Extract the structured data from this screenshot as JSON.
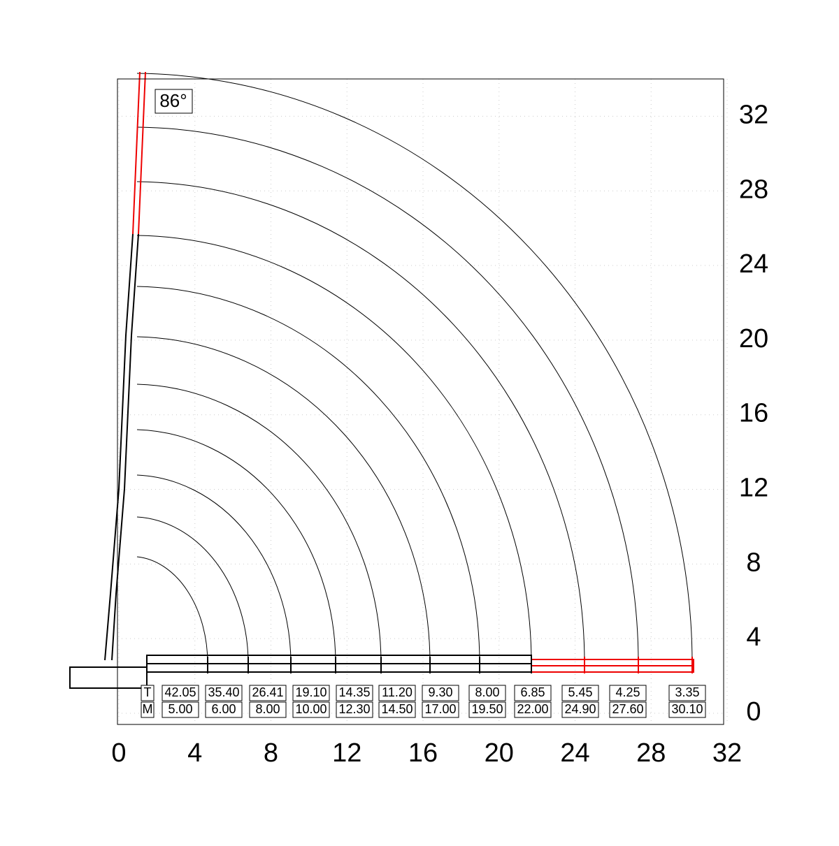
{
  "chart_data": {
    "type": "load-chart",
    "annotation": "86°",
    "xlim": [
      0,
      32
    ],
    "ylim": [
      -0.6,
      34
    ],
    "xticks": [
      0,
      4,
      8,
      12,
      16,
      20,
      24,
      28,
      32
    ],
    "yticks": [
      0,
      4,
      8,
      12,
      16,
      20,
      24,
      28,
      32
    ],
    "grid": true,
    "series": [
      {
        "name": "T",
        "values": [
          42.05,
          35.4,
          26.41,
          19.1,
          14.35,
          11.2,
          9.3,
          8,
          6.85,
          5.45,
          4.25,
          3.35
        ],
        "value_labels": [
          "42.05",
          "35.40",
          "26.41",
          "19.10",
          "14.35",
          "11.20",
          "9.30",
          "8.00",
          "6.85",
          "5.45",
          "4.25",
          "3.35"
        ]
      },
      {
        "name": "M",
        "values": [
          5,
          6,
          8,
          10,
          12.3,
          14.5,
          17,
          19.5,
          22,
          24.9,
          27.6,
          30.1
        ],
        "value_labels": [
          "5.00",
          "6.00",
          "8.00",
          "10.00",
          "12.30",
          "14.50",
          "17.00",
          "19.50",
          "22.00",
          "24.90",
          "27.60",
          "30.10"
        ]
      }
    ]
  }
}
